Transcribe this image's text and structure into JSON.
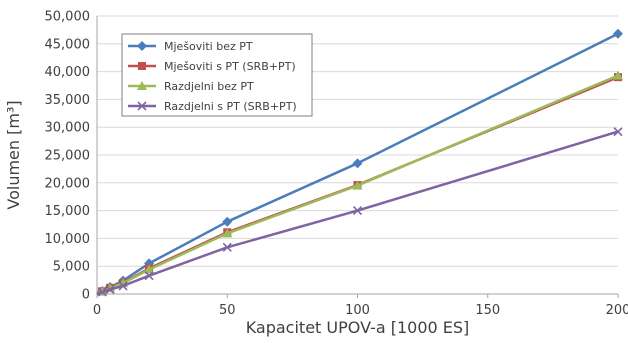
{
  "chart_data": {
    "type": "line",
    "xlabel": "Kapacitet UPOV-a [1000 ES]",
    "ylabel": "Volumen [m³]",
    "xlim": [
      0,
      200
    ],
    "ylim": [
      0,
      50000
    ],
    "x_ticks": [
      "0",
      "50",
      "100",
      "150",
      "200"
    ],
    "y_ticks": [
      "0",
      "5,000",
      "10,000",
      "15,000",
      "20,000",
      "25,000",
      "30,000",
      "35,000",
      "40,000",
      "45,000",
      "50,000"
    ],
    "x_tick_values": [
      0,
      50,
      100,
      150,
      200
    ],
    "y_tick_values": [
      0,
      5000,
      10000,
      15000,
      20000,
      25000,
      30000,
      35000,
      40000,
      45000,
      50000
    ],
    "grid": "horizontal",
    "legend_position": "top-left",
    "x": [
      2,
      5,
      10,
      20,
      50,
      100,
      200
    ],
    "series": [
      {
        "name": "Mješoviti bez PT",
        "color": "#4a7ebb",
        "marker": "diamond",
        "values": [
          550,
          1250,
          2400,
          5500,
          13000,
          23500,
          46800
        ]
      },
      {
        "name": "Mješoviti s PT (SRB+PT)",
        "color": "#c0504d",
        "marker": "square",
        "values": [
          500,
          1100,
          2000,
          4600,
          11100,
          19600,
          39000
        ]
      },
      {
        "name": "Razdjelni bez PT",
        "color": "#9bbb59",
        "marker": "triangle",
        "values": [
          480,
          1050,
          1950,
          4400,
          10900,
          19500,
          39300
        ]
      },
      {
        "name": "Razdjelni s PT (SRB+PT)",
        "color": "#8064a2",
        "marker": "x",
        "values": [
          350,
          800,
          1450,
          3300,
          8400,
          15000,
          29200
        ]
      }
    ]
  }
}
